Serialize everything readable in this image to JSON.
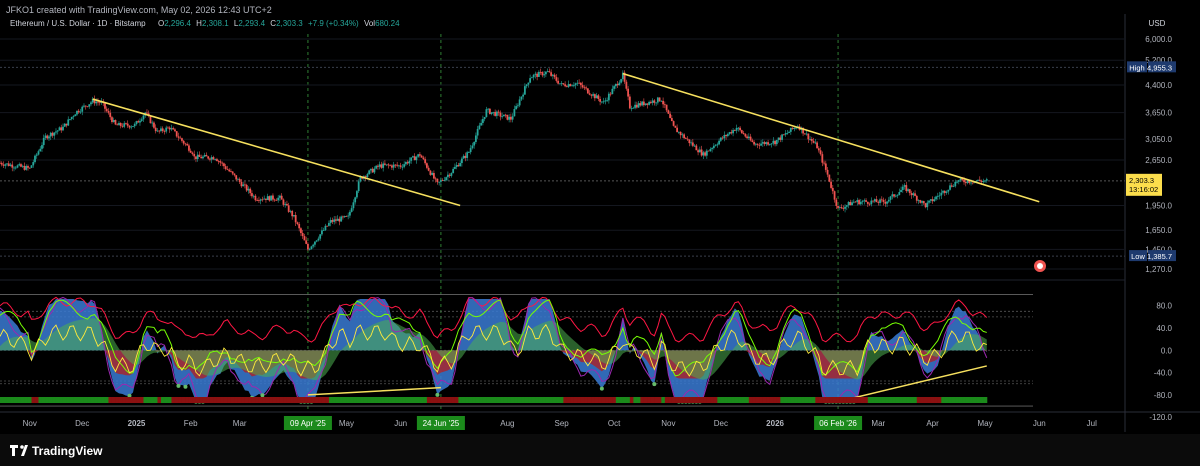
{
  "header": {
    "author_line": "JFKO1 created with TradingView.com, May 02, 2026 12:43 UTC+2",
    "symbol": "Ethereum / U.S. Dollar · 1D · Bitstamp",
    "o_label": "O",
    "o_value": "2,296.4",
    "h_label": "H",
    "h_value": "2,308.1",
    "l_label": "L",
    "l_value": "2,293.4",
    "c_label": "C",
    "c_value": "2,303.3",
    "change": "+7.9 (+0.34%)",
    "vol_label": "Vol",
    "vol_value": "680.24"
  },
  "footer": {
    "brand": "TradingView"
  },
  "colors": {
    "up": "#26a69a",
    "down": "#ef5350",
    "trendline": "#f6e05e",
    "vline": "#2e7d32",
    "price_badge": "#fcde4c",
    "high_low_badge": "#1e3a6e",
    "osc_blue": "#3a7bd5",
    "osc_red": "#b71c1c",
    "osc_green": "#4caf50",
    "osc_purple": "#9c27b0",
    "osc_line_red": "#ff1744",
    "osc_line_green": "#76ff03",
    "osc_line_yellow": "#ffeb3b"
  },
  "chart_data": [
    {
      "type": "candlestick",
      "title": "Ethereum / U.S. Dollar · 1D · Bitstamp",
      "yscale": "log",
      "currency": "USD",
      "y_ticks": [
        "6,000.0",
        "5,200.0",
        "4,400.0",
        "3,650.0",
        "3,050.0",
        "2,650.0",
        "1,950.0",
        "1,650.0",
        "1,450.0",
        "1,270.0"
      ],
      "ylim": [
        1270,
        6000
      ],
      "x_ticks": [
        "Nov",
        "Dec",
        "2025",
        "Feb",
        "Mar",
        "May",
        "Jun",
        "Aug",
        "Sep",
        "Oct",
        "Nov",
        "Dec",
        "2026",
        "Mar",
        "Apr",
        "May",
        "Jun",
        "Jul"
      ],
      "x_date_labels": [
        "09 Apr '25",
        "24 Jun '25",
        "06 Feb '26"
      ],
      "x_range": [
        "2024-10-15",
        "2026-07-20"
      ],
      "series_close": [
        [
          "2024-10-15",
          2600
        ],
        [
          "2024-11-01",
          2500
        ],
        [
          "2024-11-10",
          3100
        ],
        [
          "2024-11-20",
          3300
        ],
        [
          "2024-11-27",
          3650
        ],
        [
          "2024-12-07",
          3950
        ],
        [
          "2024-12-12",
          3900
        ],
        [
          "2024-12-20",
          3350
        ],
        [
          "2024-12-31",
          3350
        ],
        [
          "2025-01-06",
          3650
        ],
        [
          "2025-01-13",
          3200
        ],
        [
          "2025-01-20",
          3300
        ],
        [
          "2025-02-02",
          2800
        ],
        [
          "2025-02-03",
          2700
        ],
        [
          "2025-02-15",
          2700
        ],
        [
          "2025-02-25",
          2400
        ],
        [
          "2025-03-10",
          2050
        ],
        [
          "2025-03-24",
          2050
        ],
        [
          "2025-04-01",
          1800
        ],
        [
          "2025-04-09",
          1450
        ],
        [
          "2025-04-22",
          1750
        ],
        [
          "2025-05-02",
          1800
        ],
        [
          "2025-05-09",
          2350
        ],
        [
          "2025-05-20",
          2550
        ],
        [
          "2025-06-01",
          2550
        ],
        [
          "2025-06-12",
          2750
        ],
        [
          "2025-06-22",
          2250
        ],
        [
          "2025-06-30",
          2450
        ],
        [
          "2025-07-10",
          2800
        ],
        [
          "2025-07-20",
          3700
        ],
        [
          "2025-08-03",
          3500
        ],
        [
          "2025-08-14",
          4650
        ],
        [
          "2025-08-24",
          4800
        ],
        [
          "2025-09-01",
          4400
        ],
        [
          "2025-09-10",
          4450
        ],
        [
          "2025-09-25",
          3900
        ],
        [
          "2025-10-06",
          4700
        ],
        [
          "2025-10-10",
          3800
        ],
        [
          "2025-10-28",
          4000
        ],
        [
          "2025-11-04",
          3300
        ],
        [
          "2025-11-21",
          2750
        ],
        [
          "2025-12-01",
          3050
        ],
        [
          "2025-12-10",
          3300
        ],
        [
          "2025-12-20",
          2950
        ],
        [
          "2026-01-01",
          3000
        ],
        [
          "2026-01-14",
          3350
        ],
        [
          "2026-01-25",
          2900
        ],
        [
          "2026-01-31",
          2400
        ],
        [
          "2026-02-06",
          1900
        ],
        [
          "2026-02-15",
          2000
        ],
        [
          "2026-03-05",
          2000
        ],
        [
          "2026-03-16",
          2200
        ],
        [
          "2026-03-28",
          1950
        ],
        [
          "2026-04-15",
          2300
        ],
        [
          "2026-05-02",
          2303.3
        ]
      ],
      "high_label": "High",
      "high_value": "4,955.3",
      "low_label": "Low",
      "low_value": "1,385.7",
      "last_price": "2,303.3",
      "countdown": "13:16:02",
      "trendlines": [
        {
          "from": [
            "2024-12-07",
            4000
          ],
          "to": [
            "2025-07-05",
            1950
          ]
        },
        {
          "from": [
            "2025-10-06",
            4750
          ],
          "to": [
            "2026-06-01",
            2000
          ]
        }
      ]
    },
    {
      "type": "oscillator",
      "y_ticks": [
        "80.0",
        "40.0",
        "0.0",
        "-40.0",
        "-80.0",
        "-120.0"
      ],
      "ylim": [
        -125,
        110
      ],
      "divergence_lines": [
        {
          "from": [
            "2025-04-09",
            -80
          ],
          "to": [
            "2025-06-24",
            -67
          ]
        },
        {
          "from": [
            "2026-02-06",
            -92
          ],
          "to": [
            "2026-05-02",
            -28
          ]
        }
      ]
    }
  ]
}
